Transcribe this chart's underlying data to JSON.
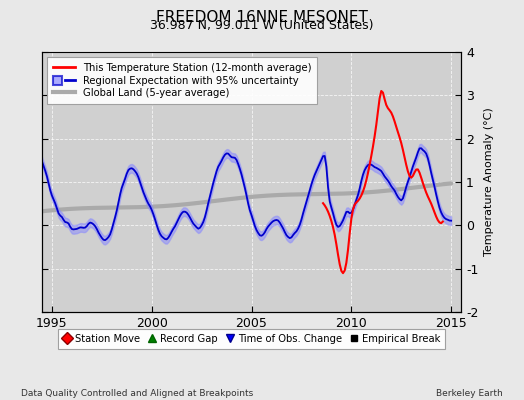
{
  "title": "FREEDOM 16NNE MESONET",
  "subtitle": "36.987 N, 99.011 W (United States)",
  "ylabel": "Temperature Anomaly (°C)",
  "xlim": [
    1994.5,
    2015.5
  ],
  "ylim": [
    -2,
    4
  ],
  "yticks": [
    -2,
    -1,
    0,
    1,
    2,
    3,
    4
  ],
  "xticks": [
    1995,
    2000,
    2005,
    2010,
    2015
  ],
  "background_color": "#e8e8e8",
  "plot_bg_color": "#d0d0d0",
  "footer_left": "Data Quality Controlled and Aligned at Breakpoints",
  "footer_right": "Berkeley Earth",
  "legend1_entries": [
    "This Temperature Station (12-month average)",
    "Regional Expectation with 95% uncertainty",
    "Global Land (5-year average)"
  ],
  "legend2_entries": [
    "Station Move",
    "Record Gap",
    "Time of Obs. Change",
    "Empirical Break"
  ],
  "station_color": "#ff0000",
  "regional_color": "#0000cc",
  "regional_fill_color": "#8888ff",
  "global_color": "#aaaaaa",
  "title_fontsize": 11,
  "subtitle_fontsize": 9,
  "axis_fontsize": 8,
  "tick_fontsize": 9
}
